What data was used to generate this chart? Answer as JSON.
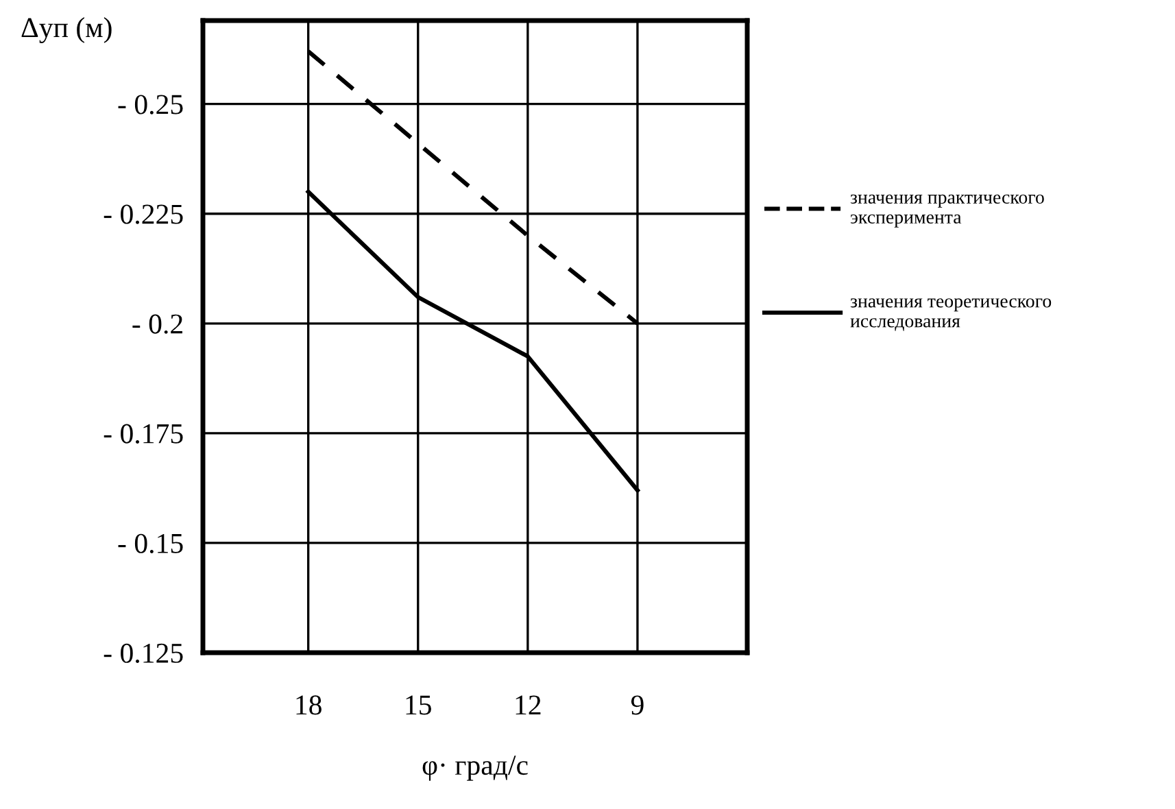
{
  "chart_data": {
    "type": "line",
    "xlabel": "φ· град/с",
    "ylabel": "Δyп (м)",
    "categories": [
      "18",
      "15",
      "12",
      "9"
    ],
    "series": [
      {
        "name": "значения практического\nэксперимента",
        "color": "#000000",
        "line_style": "dashed",
        "values": [
          -0.262,
          -0.241,
          -0.22,
          -0.2
        ]
      },
      {
        "name": "значения теоретического\nисследования",
        "color": "#000000",
        "line_style": "solid",
        "values": [
          -0.23,
          -0.206,
          -0.1925,
          -0.162
        ]
      }
    ],
    "ylim": [
      -0.125,
      -0.269
    ],
    "yticks": [
      {
        "value": -0.25,
        "label": "- 0.25"
      },
      {
        "value": -0.225,
        "label": "- 0.225"
      },
      {
        "value": -0.2,
        "label": "- 0.2"
      },
      {
        "value": -0.175,
        "label": "- 0.175"
      },
      {
        "value": -0.15,
        "label": "- 0.15"
      },
      {
        "value": -0.125,
        "label": "- 0.125"
      }
    ],
    "grid": true,
    "legend": "right",
    "marker": "none"
  }
}
